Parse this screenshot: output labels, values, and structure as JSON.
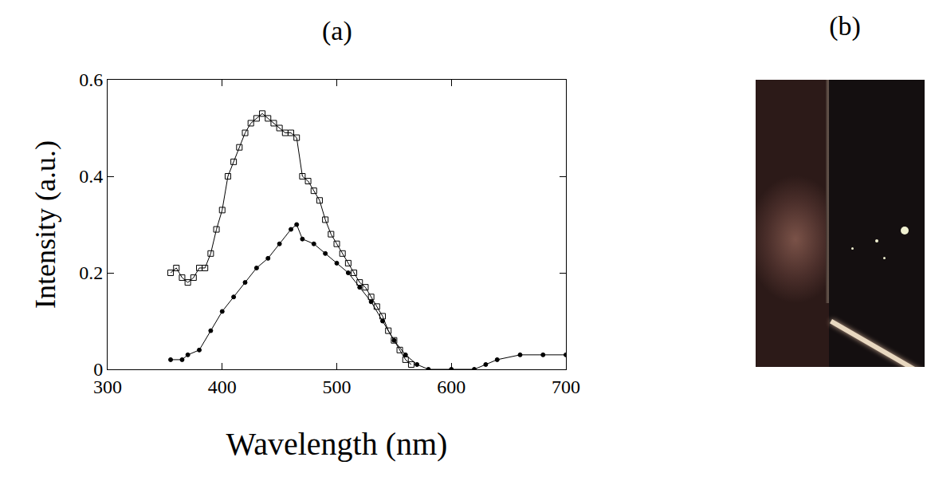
{
  "chart_data": {
    "type": "scatter",
    "title": "(a)",
    "x_label": "Wavelength (nm)",
    "y_label": "Intensity (a.u.)",
    "xlim": [
      300,
      700
    ],
    "xticks": [
      300,
      400,
      500,
      600,
      700
    ],
    "ylim": [
      0,
      0.6
    ],
    "yticks": [
      0,
      0.2,
      0.4,
      0.6
    ],
    "grid": false,
    "series": [
      {
        "color": "#000000",
        "marker": "square-open",
        "line_style": "solid",
        "x": [
          355,
          360,
          365,
          370,
          375,
          380,
          385,
          390,
          395,
          400,
          405,
          410,
          415,
          420,
          425,
          430,
          435,
          440,
          445,
          450,
          455,
          460,
          465,
          470,
          475,
          480,
          485,
          490,
          495,
          500,
          505,
          510,
          515,
          520,
          525,
          530,
          535,
          540,
          545,
          550,
          555,
          560,
          565
        ],
        "values": [
          0.2,
          0.21,
          0.19,
          0.18,
          0.19,
          0.21,
          0.21,
          0.24,
          0.29,
          0.33,
          0.4,
          0.43,
          0.46,
          0.49,
          0.51,
          0.52,
          0.53,
          0.52,
          0.51,
          0.5,
          0.49,
          0.49,
          0.48,
          0.4,
          0.39,
          0.37,
          0.35,
          0.31,
          0.28,
          0.26,
          0.24,
          0.22,
          0.2,
          0.18,
          0.17,
          0.15,
          0.13,
          0.11,
          0.08,
          0.06,
          0.04,
          0.02,
          0.01
        ]
      },
      {
        "color": "#000000",
        "marker": "circle",
        "line_style": "solid",
        "x": [
          355,
          365,
          370,
          380,
          390,
          400,
          410,
          420,
          430,
          440,
          450,
          460,
          465,
          470,
          480,
          490,
          500,
          510,
          520,
          530,
          540,
          550,
          560,
          570,
          580,
          600,
          620,
          630,
          640,
          660,
          680,
          700
        ],
        "values": [
          0.02,
          0.02,
          0.03,
          0.04,
          0.08,
          0.12,
          0.15,
          0.18,
          0.21,
          0.23,
          0.26,
          0.29,
          0.3,
          0.27,
          0.26,
          0.24,
          0.22,
          0.2,
          0.17,
          0.14,
          0.1,
          0.06,
          0.03,
          0.01,
          0.0,
          0.0,
          0.0,
          0.01,
          0.02,
          0.03,
          0.03,
          0.03
        ]
      }
    ]
  },
  "image_panel": {
    "label": "(b)"
  }
}
